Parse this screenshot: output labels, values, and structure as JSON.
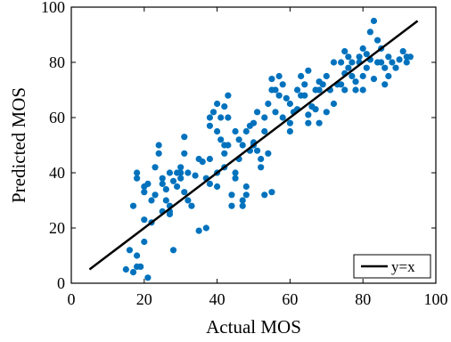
{
  "chart_data": {
    "type": "scatter",
    "xlabel": "Actual MOS",
    "ylabel": "Predicted MOS",
    "xlim": [
      0,
      100
    ],
    "ylim": [
      0,
      100
    ],
    "x_ticks": [
      0,
      20,
      40,
      60,
      80,
      100
    ],
    "y_ticks": [
      0,
      20,
      40,
      60,
      80,
      100
    ],
    "x_tick_labels": [
      "0",
      "20",
      "40",
      "60",
      "80",
      "100"
    ],
    "y_tick_labels": [
      "0",
      "20",
      "40",
      "60",
      "80",
      "100"
    ],
    "grid": false,
    "legend_position": "bottom-right",
    "legend": [
      "y=x"
    ],
    "point_color": "#0072BD",
    "line_color": "#000000",
    "reference_line": {
      "label": "y=x",
      "x": [
        5,
        95
      ],
      "y": [
        5,
        95
      ]
    },
    "points": [
      [
        15,
        5
      ],
      [
        16,
        12
      ],
      [
        17,
        4
      ],
      [
        18,
        6
      ],
      [
        19,
        6
      ],
      [
        20,
        15
      ],
      [
        21,
        2
      ],
      [
        18,
        10
      ],
      [
        17,
        28
      ],
      [
        18,
        38
      ],
      [
        18,
        40
      ],
      [
        20,
        33
      ],
      [
        20,
        35
      ],
      [
        21,
        36
      ],
      [
        20,
        23
      ],
      [
        22,
        22
      ],
      [
        22,
        30
      ],
      [
        23,
        32
      ],
      [
        23,
        42
      ],
      [
        24,
        47
      ],
      [
        24,
        50
      ],
      [
        25,
        36
      ],
      [
        25,
        38
      ],
      [
        25,
        26
      ],
      [
        26,
        30
      ],
      [
        26,
        34
      ],
      [
        27,
        25
      ],
      [
        27,
        28
      ],
      [
        27,
        40
      ],
      [
        27,
        26
      ],
      [
        28,
        12
      ],
      [
        28,
        37
      ],
      [
        29,
        40
      ],
      [
        29,
        35
      ],
      [
        30,
        42
      ],
      [
        30,
        38
      ],
      [
        30,
        40
      ],
      [
        31,
        47
      ],
      [
        31,
        53
      ],
      [
        31,
        33
      ],
      [
        32,
        30
      ],
      [
        32,
        40
      ],
      [
        33,
        28
      ],
      [
        34,
        39
      ],
      [
        35,
        19
      ],
      [
        35,
        45
      ],
      [
        36,
        44
      ],
      [
        37,
        38
      ],
      [
        37,
        20
      ],
      [
        38,
        45
      ],
      [
        38,
        36
      ],
      [
        38,
        60
      ],
      [
        38,
        57
      ],
      [
        39,
        62
      ],
      [
        40,
        65
      ],
      [
        40,
        55
      ],
      [
        40,
        40
      ],
      [
        40,
        35
      ],
      [
        41,
        60
      ],
      [
        41,
        52
      ],
      [
        42,
        64
      ],
      [
        42,
        50
      ],
      [
        42,
        47
      ],
      [
        42,
        42
      ],
      [
        43,
        50
      ],
      [
        43,
        60
      ],
      [
        43,
        68
      ],
      [
        44,
        32
      ],
      [
        44,
        28
      ],
      [
        45,
        55
      ],
      [
        45,
        40
      ],
      [
        45,
        38
      ],
      [
        46,
        45
      ],
      [
        46,
        52
      ],
      [
        47,
        50
      ],
      [
        47,
        28
      ],
      [
        47,
        30
      ],
      [
        48,
        55
      ],
      [
        48,
        35
      ],
      [
        48,
        32
      ],
      [
        49,
        48
      ],
      [
        49,
        57
      ],
      [
        50,
        50
      ],
      [
        50,
        51
      ],
      [
        50,
        58
      ],
      [
        51,
        62
      ],
      [
        51,
        48
      ],
      [
        52,
        45
      ],
      [
        52,
        42
      ],
      [
        53,
        32
      ],
      [
        53,
        55
      ],
      [
        53,
        60
      ],
      [
        54,
        47
      ],
      [
        54,
        65
      ],
      [
        55,
        74
      ],
      [
        55,
        70
      ],
      [
        55,
        33
      ],
      [
        56,
        70
      ],
      [
        56,
        62
      ],
      [
        57,
        75
      ],
      [
        57,
        68
      ],
      [
        58,
        60
      ],
      [
        58,
        72
      ],
      [
        59,
        67
      ],
      [
        60,
        55
      ],
      [
        60,
        65
      ],
      [
        60,
        58
      ],
      [
        61,
        62
      ],
      [
        62,
        70
      ],
      [
        62,
        63
      ],
      [
        63,
        68
      ],
      [
        63,
        75
      ],
      [
        64,
        72
      ],
      [
        64,
        68
      ],
      [
        65,
        61
      ],
      [
        65,
        77
      ],
      [
        65,
        58
      ],
      [
        66,
        64
      ],
      [
        67,
        70
      ],
      [
        67,
        63
      ],
      [
        68,
        58
      ],
      [
        68,
        70
      ],
      [
        68,
        73
      ],
      [
        69,
        72
      ],
      [
        70,
        75
      ],
      [
        70,
        62
      ],
      [
        71,
        70
      ],
      [
        72,
        65
      ],
      [
        72,
        80
      ],
      [
        73,
        72
      ],
      [
        74,
        72
      ],
      [
        74,
        80
      ],
      [
        75,
        84
      ],
      [
        75,
        76
      ],
      [
        75,
        70
      ],
      [
        76,
        82
      ],
      [
        76,
        78
      ],
      [
        77,
        75
      ],
      [
        77,
        80
      ],
      [
        78,
        70
      ],
      [
        78,
        73
      ],
      [
        79,
        82
      ],
      [
        79,
        80
      ],
      [
        80,
        70
      ],
      [
        80,
        85
      ],
      [
        80,
        75
      ],
      [
        81,
        78
      ],
      [
        81,
        83
      ],
      [
        82,
        81
      ],
      [
        82,
        91
      ],
      [
        83,
        95
      ],
      [
        83,
        74
      ],
      [
        84,
        88
      ],
      [
        84,
        80
      ],
      [
        85,
        80
      ],
      [
        85,
        85
      ],
      [
        86,
        78
      ],
      [
        86,
        72
      ],
      [
        87,
        75
      ],
      [
        87,
        82
      ],
      [
        88,
        80
      ],
      [
        89,
        78
      ],
      [
        90,
        81
      ],
      [
        91,
        84
      ],
      [
        92,
        80
      ],
      [
        92,
        82
      ],
      [
        93,
        82
      ]
    ]
  }
}
